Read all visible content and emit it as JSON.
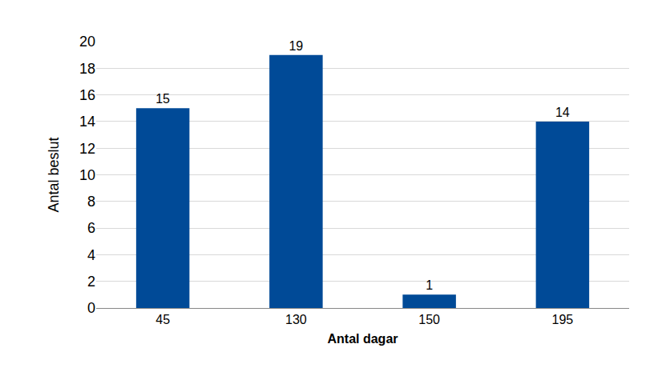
{
  "chart_data": {
    "type": "bar",
    "x_label": "Antal dagar",
    "y_label": "Antal beslut",
    "categories": [
      "45",
      "130",
      "150",
      "195"
    ],
    "values": [
      15,
      19,
      1,
      14
    ],
    "color": "#004a97",
    "ylim": [
      0,
      20
    ],
    "yticks": [
      0,
      2,
      4,
      6,
      8,
      10,
      12,
      14,
      16,
      18,
      20
    ],
    "grid": true,
    "data_labels": true
  }
}
